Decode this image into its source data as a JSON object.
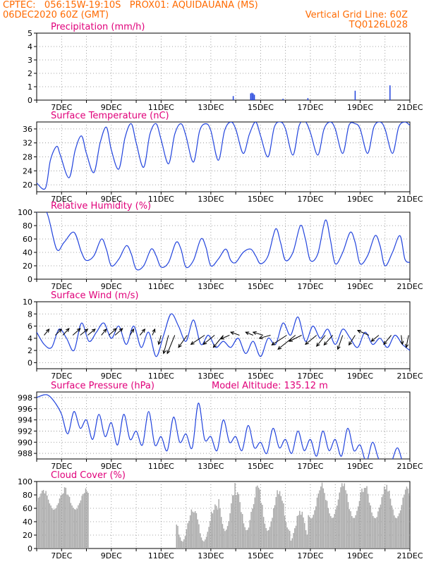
{
  "header": {
    "line1": "CPTEC:   056:15W-19:10S   PROX01: AQUIDAUANA (MS)",
    "line2": "06DEC2020 60Z (GMT)",
    "grid_note": "Vertical Grid Line: 60Z",
    "code": "TQ0126L028"
  },
  "colors": {
    "header": "#ff6a00",
    "title": "#e0007a",
    "series": "#2244dd",
    "cloud": "#a9a9a9",
    "grid": "#888888"
  },
  "x_ticks": [
    "7DEC",
    "9DEC",
    "11DEC",
    "13DEC",
    "15DEC",
    "17DEC",
    "19DEC",
    "21DEC"
  ],
  "chart_data": [
    {
      "type": "bar",
      "title": "Precipitation (mm/h)",
      "ylim": [
        0,
        5
      ],
      "yticks": [
        0,
        1,
        2,
        3,
        4,
        5
      ],
      "x_range": [
        6.0,
        21.0
      ],
      "x": [
        13.9,
        14.6,
        14.65,
        14.7,
        14.75,
        15.9,
        16.9,
        18.8,
        20.2
      ],
      "values": [
        0.3,
        0.5,
        0.55,
        0.5,
        0.4,
        0.1,
        0.15,
        0.7,
        1.1
      ]
    },
    {
      "type": "line",
      "title": "Surface Temperature (nC)",
      "ylim": [
        18,
        38
      ],
      "yticks": [
        20,
        24,
        28,
        32,
        36
      ],
      "x": [
        6.0,
        6.35,
        6.55,
        6.8,
        6.95,
        7.3,
        7.55,
        7.8,
        8.0,
        8.3,
        8.55,
        8.8,
        9.0,
        9.3,
        9.55,
        9.8,
        10.0,
        10.3,
        10.55,
        10.8,
        11.0,
        11.3,
        11.55,
        11.8,
        12.0,
        12.3,
        12.55,
        12.8,
        13.0,
        13.3,
        13.55,
        13.8,
        14.0,
        14.3,
        14.55,
        14.8,
        15.0,
        15.3,
        15.55,
        15.8,
        16.0,
        16.3,
        16.55,
        16.8,
        17.0,
        17.3,
        17.55,
        17.8,
        18.0,
        18.3,
        18.55,
        18.8,
        19.0,
        19.3,
        19.55,
        19.8,
        20.0,
        20.3,
        20.55,
        20.8,
        21.0
      ],
      "values": [
        20.5,
        19.0,
        27.0,
        31.0,
        28.5,
        22.0,
        30.0,
        34.0,
        29.0,
        23.5,
        32.0,
        36.5,
        30.0,
        24.5,
        33.5,
        37.5,
        32.0,
        25.0,
        34.5,
        37.5,
        33.0,
        26.0,
        34.5,
        37.5,
        34.0,
        26.5,
        35.5,
        37.5,
        35.5,
        27.0,
        35.5,
        38.0,
        36.0,
        29.0,
        34.5,
        38.0,
        34.0,
        28.0,
        36.5,
        38.0,
        36.0,
        28.5,
        37.0,
        38.0,
        35.0,
        28.5,
        36.0,
        38.0,
        36.0,
        29.0,
        37.0,
        37.5,
        36.0,
        29.0,
        36.5,
        38.0,
        36.0,
        29.0,
        36.5,
        38.0,
        37.0
      ]
    },
    {
      "type": "line",
      "title": "Relative Humidity (%)",
      "ylim": [
        0,
        100
      ],
      "yticks": [
        0,
        20,
        40,
        60,
        80,
        100
      ],
      "x": [
        6.0,
        6.4,
        6.8,
        7.1,
        7.5,
        7.8,
        8.0,
        8.3,
        8.6,
        8.8,
        9.0,
        9.3,
        9.6,
        9.8,
        10.0,
        10.3,
        10.6,
        10.8,
        11.0,
        11.3,
        11.6,
        11.8,
        12.0,
        12.3,
        12.6,
        12.8,
        13.0,
        13.3,
        13.6,
        13.8,
        14.0,
        14.3,
        14.6,
        14.8,
        15.0,
        15.3,
        15.6,
        15.8,
        16.0,
        16.3,
        16.6,
        16.8,
        17.0,
        17.3,
        17.6,
        17.8,
        18.0,
        18.3,
        18.6,
        18.8,
        19.0,
        19.3,
        19.6,
        19.8,
        20.0,
        20.3,
        20.6,
        20.8,
        21.0
      ],
      "values": [
        100,
        100,
        45,
        55,
        70,
        40,
        28,
        35,
        60,
        45,
        20,
        30,
        50,
        38,
        15,
        20,
        45,
        35,
        18,
        25,
        55,
        45,
        18,
        28,
        60,
        48,
        20,
        30,
        45,
        28,
        25,
        40,
        45,
        35,
        23,
        35,
        75,
        55,
        28,
        40,
        80,
        60,
        28,
        38,
        88,
        60,
        23,
        40,
        70,
        55,
        23,
        35,
        65,
        50,
        20,
        40,
        65,
        30,
        25
      ]
    },
    {
      "type": "line",
      "title": "Surface Wind (m/s)",
      "ylim": [
        -1,
        10
      ],
      "yticks": [
        0,
        2,
        4,
        6,
        8,
        10
      ],
      "x": [
        6.0,
        6.3,
        6.6,
        6.9,
        7.2,
        7.5,
        7.8,
        8.1,
        8.4,
        8.7,
        9.0,
        9.3,
        9.6,
        9.9,
        10.2,
        10.5,
        10.8,
        11.1,
        11.4,
        11.7,
        12.0,
        12.3,
        12.6,
        12.9,
        13.2,
        13.5,
        13.8,
        14.1,
        14.4,
        14.7,
        15.0,
        15.3,
        15.6,
        15.9,
        16.2,
        16.5,
        16.8,
        17.1,
        17.4,
        17.7,
        18.0,
        18.3,
        18.6,
        18.9,
        19.2,
        19.5,
        19.8,
        20.1,
        20.4,
        20.7,
        21.0
      ],
      "values": [
        5.0,
        3.0,
        2.5,
        5.5,
        4.0,
        2.0,
        6.5,
        3.5,
        5.0,
        6.5,
        4.0,
        6.0,
        3.0,
        6.0,
        2.5,
        5.0,
        1.0,
        4.5,
        8.0,
        6.0,
        3.5,
        7.0,
        3.0,
        4.5,
        2.5,
        3.5,
        2.5,
        4.0,
        1.5,
        3.5,
        1.0,
        4.0,
        3.0,
        6.5,
        4.5,
        7.5,
        3.5,
        6.0,
        4.0,
        5.5,
        3.0,
        5.5,
        4.0,
        2.5,
        5.0,
        3.0,
        4.0,
        2.5,
        4.5,
        3.0,
        2.0
      ],
      "arrows_x": [
        6.3,
        6.75,
        7.05,
        7.45,
        7.75,
        8.05,
        8.6,
        8.9,
        9.15,
        9.75,
        10.15,
        10.65,
        11.0,
        11.3,
        11.55,
        12.05,
        12.75,
        13.15,
        13.5,
        13.75,
        14.15,
        14.7,
        15.1,
        15.4,
        16.05,
        16.4,
        16.65,
        17.25,
        17.6,
        17.9,
        18.3,
        18.8,
        19.35,
        19.75,
        20.25,
        20.65,
        20.95
      ],
      "arrows_dx": [
        0.2,
        0.25,
        0.25,
        0.3,
        0.3,
        0.3,
        0.2,
        0.3,
        0.3,
        0.15,
        0.2,
        0.1,
        -0.1,
        -0.2,
        -0.3,
        -0.35,
        -0.55,
        -0.45,
        -0.4,
        -0.35,
        -0.35,
        -0.3,
        -0.4,
        -0.45,
        -0.6,
        -0.7,
        -0.5,
        -0.45,
        -0.35,
        -0.35,
        -0.2,
        -0.25,
        -0.45,
        -0.3,
        -0.3,
        0.05,
        -0.1
      ],
      "arrows_dy": [
        1.0,
        1.0,
        1.1,
        1.1,
        1.0,
        1.0,
        1.0,
        1.1,
        1.1,
        1.0,
        1.0,
        1.0,
        -1.5,
        -3.0,
        -3.0,
        -2.0,
        -1.5,
        -1.5,
        -2.0,
        -0.6,
        0.5,
        0.5,
        0.5,
        -0.5,
        -1.6,
        -2.3,
        -1.0,
        -1.5,
        -1.8,
        -1.6,
        -2.3,
        -1.6,
        0.8,
        -1.0,
        -1.5,
        -1.5,
        -2.0
      ]
    },
    {
      "type": "line",
      "title": "Surface Pressure (hPa)",
      "subtitle": "Model Altitude: 135.12 m",
      "ylim": [
        987,
        999
      ],
      "yticks": [
        988,
        990,
        992,
        994,
        996,
        998
      ],
      "x": [
        6.0,
        6.3,
        6.5,
        6.75,
        7.0,
        7.25,
        7.5,
        7.75,
        8.0,
        8.25,
        8.5,
        8.75,
        9.0,
        9.25,
        9.5,
        9.75,
        10.0,
        10.25,
        10.5,
        10.75,
        11.0,
        11.25,
        11.5,
        11.75,
        12.0,
        12.25,
        12.5,
        12.75,
        13.0,
        13.25,
        13.5,
        13.75,
        14.0,
        14.25,
        14.5,
        14.75,
        15.0,
        15.25,
        15.5,
        15.75,
        16.0,
        16.25,
        16.5,
        16.75,
        17.0,
        17.25,
        17.5,
        17.75,
        18.0,
        18.25,
        18.5,
        18.75,
        19.0,
        19.25,
        19.5,
        19.75,
        20.0,
        20.25,
        20.5,
        20.75,
        21.0
      ],
      "values": [
        998.0,
        998.5,
        998.3,
        997.0,
        995.0,
        991.5,
        995.5,
        992.5,
        994.0,
        990.5,
        995.0,
        991.0,
        993.5,
        989.5,
        995.0,
        990.5,
        992.0,
        989.5,
        995.5,
        989.5,
        991.0,
        988.5,
        994.5,
        990.0,
        991.5,
        989.0,
        997.0,
        990.5,
        991.0,
        988.5,
        994.0,
        990.0,
        991.0,
        988.5,
        993.0,
        989.0,
        990.0,
        988.0,
        992.5,
        989.0,
        990.5,
        988.0,
        992.0,
        988.5,
        990.5,
        987.5,
        992.0,
        988.5,
        990.5,
        987.5,
        992.5,
        988.5,
        989.5,
        986.5,
        990.0,
        987.0,
        986.8,
        986.5,
        989.0,
        986.0,
        986.0
      ]
    },
    {
      "type": "bar",
      "title": "Cloud Cover (%)",
      "ylim": [
        0,
        100
      ],
      "yticks": [
        0,
        20,
        40,
        60,
        80,
        100
      ],
      "x_range": [
        6.0,
        21.0
      ],
      "bar_step": 0.05,
      "segments": [
        {
          "x0": 6.0,
          "x1": 8.1,
          "lo": 55,
          "hi": 92
        },
        {
          "x0": 11.6,
          "x1": 13.3,
          "lo": 5,
          "hi": 70
        },
        {
          "x0": 13.3,
          "x1": 16.2,
          "lo": 20,
          "hi": 100
        },
        {
          "x0": 16.2,
          "x1": 16.9,
          "lo": 5,
          "hi": 60
        },
        {
          "x0": 16.9,
          "x1": 21.0,
          "lo": 40,
          "hi": 100
        }
      ]
    }
  ]
}
